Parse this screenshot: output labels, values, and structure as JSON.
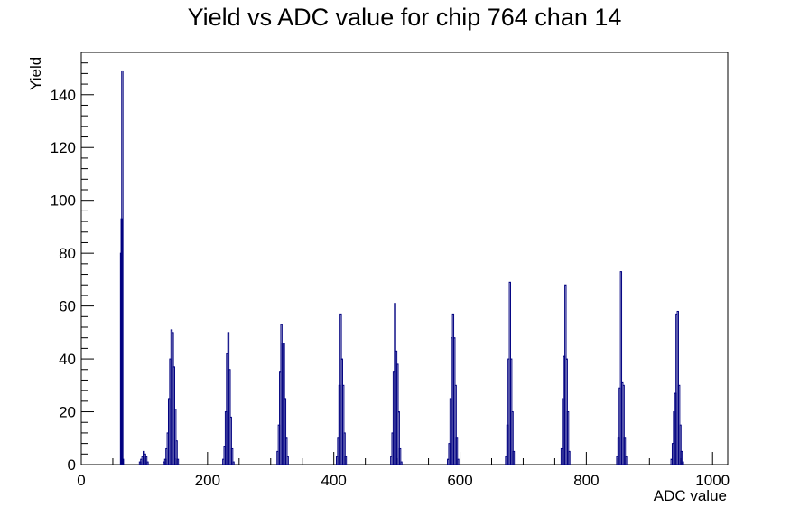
{
  "chart_data": {
    "type": "bar",
    "title": "Yield vs ADC value for chip 764 chan 14",
    "xlabel": "ADC value",
    "ylabel": "Yield",
    "xlim": [
      0,
      1024
    ],
    "ylim": [
      0,
      156
    ],
    "xticks": [
      0,
      200,
      400,
      600,
      800,
      1000
    ],
    "yticks": [
      0,
      20,
      40,
      60,
      80,
      100,
      120,
      140
    ],
    "line_color": "#000080",
    "bin_width": 2,
    "bins": [
      [
        62,
        80
      ],
      [
        63,
        93
      ],
      [
        64,
        149
      ],
      [
        65,
        2
      ],
      [
        92,
        1
      ],
      [
        94,
        2
      ],
      [
        96,
        3
      ],
      [
        98,
        5
      ],
      [
        100,
        4
      ],
      [
        102,
        3
      ],
      [
        104,
        1
      ],
      [
        130,
        1
      ],
      [
        132,
        2
      ],
      [
        134,
        6
      ],
      [
        136,
        12
      ],
      [
        138,
        25
      ],
      [
        140,
        40
      ],
      [
        142,
        51
      ],
      [
        144,
        50
      ],
      [
        146,
        37
      ],
      [
        148,
        21
      ],
      [
        150,
        9
      ],
      [
        152,
        2
      ],
      [
        224,
        2
      ],
      [
        226,
        7
      ],
      [
        228,
        20
      ],
      [
        230,
        42
      ],
      [
        232,
        50
      ],
      [
        234,
        36
      ],
      [
        236,
        18
      ],
      [
        238,
        6
      ],
      [
        240,
        1
      ],
      [
        310,
        5
      ],
      [
        312,
        15
      ],
      [
        314,
        35
      ],
      [
        316,
        53
      ],
      [
        318,
        46
      ],
      [
        320,
        46
      ],
      [
        322,
        25
      ],
      [
        324,
        10
      ],
      [
        326,
        3
      ],
      [
        404,
        3
      ],
      [
        406,
        10
      ],
      [
        408,
        30
      ],
      [
        410,
        57
      ],
      [
        412,
        40
      ],
      [
        414,
        30
      ],
      [
        416,
        12
      ],
      [
        418,
        3
      ],
      [
        490,
        3
      ],
      [
        492,
        12
      ],
      [
        494,
        35
      ],
      [
        496,
        61
      ],
      [
        498,
        43
      ],
      [
        500,
        38
      ],
      [
        502,
        20
      ],
      [
        504,
        6
      ],
      [
        506,
        1
      ],
      [
        580,
        2
      ],
      [
        582,
        8
      ],
      [
        584,
        25
      ],
      [
        586,
        48
      ],
      [
        588,
        57
      ],
      [
        590,
        48
      ],
      [
        592,
        30
      ],
      [
        594,
        10
      ],
      [
        596,
        2
      ],
      [
        672,
        3
      ],
      [
        674,
        15
      ],
      [
        676,
        40
      ],
      [
        678,
        69
      ],
      [
        680,
        40
      ],
      [
        682,
        20
      ],
      [
        684,
        5
      ],
      [
        760,
        6
      ],
      [
        762,
        25
      ],
      [
        764,
        41
      ],
      [
        766,
        68
      ],
      [
        768,
        40
      ],
      [
        770,
        20
      ],
      [
        772,
        5
      ],
      [
        848,
        3
      ],
      [
        850,
        10
      ],
      [
        852,
        29
      ],
      [
        854,
        73
      ],
      [
        856,
        31
      ],
      [
        858,
        30
      ],
      [
        860,
        10
      ],
      [
        862,
        3
      ],
      [
        934,
        2
      ],
      [
        936,
        8
      ],
      [
        938,
        20
      ],
      [
        940,
        27
      ],
      [
        942,
        57
      ],
      [
        944,
        58
      ],
      [
        946,
        30
      ],
      [
        948,
        15
      ],
      [
        950,
        5
      ],
      [
        952,
        1
      ]
    ]
  }
}
